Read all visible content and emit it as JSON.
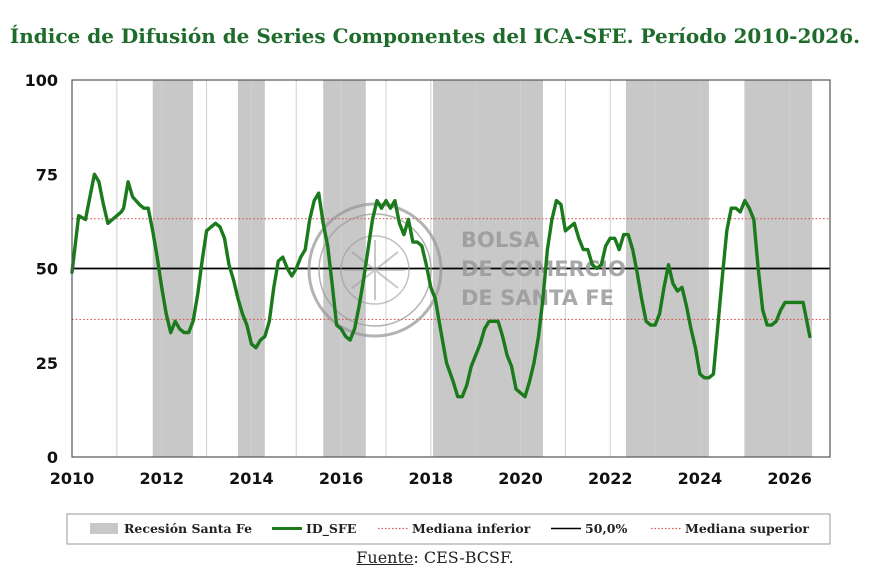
{
  "title": "Índice de Difusión de Series Componentes del ICA-SFE. Período 2010-2026.",
  "source_label": "Fuente",
  "source_text": ": CES-BCSF.",
  "watermark": [
    "BOLSA",
    "DE COMERCIO",
    "DE SANTA FE"
  ],
  "colors": {
    "series": "#1b7a1b",
    "recession": "#c8c8c8",
    "median_lines": "#d9534f",
    "threshold": "#000000"
  },
  "chart_data": {
    "type": "line",
    "title": "Índice de Difusión de Series Componentes del ICA-SFE. Período 2010-2026.",
    "xlim": [
      2010,
      2026.9
    ],
    "ylim": [
      0,
      100
    ],
    "x_ticks": [
      "2010",
      "2012",
      "2014",
      "2016",
      "2018",
      "2020",
      "2022",
      "2024",
      "2026"
    ],
    "y_ticks": [
      "0",
      "25",
      "50",
      "75",
      "100"
    ],
    "grid": "vertical",
    "legend_position": "bottom",
    "recessions": [
      [
        2011.8,
        2012.7
      ],
      [
        2013.7,
        2014.3
      ],
      [
        2015.6,
        2016.55
      ],
      [
        2018.05,
        2020.5
      ],
      [
        2022.35,
        2024.2
      ],
      [
        2025.0,
        2026.5
      ]
    ],
    "reference_lines": [
      {
        "name": "Mediana inferior",
        "value": 36.5,
        "style": "dotted-red"
      },
      {
        "name": "50,0%",
        "value": 50,
        "style": "solid-black"
      },
      {
        "name": "Mediana superior",
        "value": 63.2,
        "style": "dotted-red"
      }
    ],
    "series": [
      {
        "name": "ID_SFE",
        "points": [
          [
            2010.0,
            49
          ],
          [
            2010.15,
            64
          ],
          [
            2010.3,
            63
          ],
          [
            2010.4,
            69
          ],
          [
            2010.5,
            75
          ],
          [
            2010.6,
            73
          ],
          [
            2010.7,
            67
          ],
          [
            2010.8,
            62
          ],
          [
            2010.9,
            63
          ],
          [
            2011.0,
            64
          ],
          [
            2011.1,
            65
          ],
          [
            2011.15,
            66
          ],
          [
            2011.25,
            73
          ],
          [
            2011.35,
            69
          ],
          [
            2011.5,
            67
          ],
          [
            2011.6,
            66
          ],
          [
            2011.7,
            66
          ],
          [
            2011.8,
            60
          ],
          [
            2011.9,
            53
          ],
          [
            2012.0,
            45
          ],
          [
            2012.1,
            38
          ],
          [
            2012.2,
            33
          ],
          [
            2012.3,
            36
          ],
          [
            2012.4,
            34
          ],
          [
            2012.5,
            33
          ],
          [
            2012.6,
            33
          ],
          [
            2012.7,
            36
          ],
          [
            2012.8,
            43
          ],
          [
            2012.9,
            52
          ],
          [
            2013.0,
            60
          ],
          [
            2013.1,
            61
          ],
          [
            2013.2,
            62
          ],
          [
            2013.3,
            61
          ],
          [
            2013.4,
            58
          ],
          [
            2013.5,
            51
          ],
          [
            2013.6,
            47
          ],
          [
            2013.7,
            42
          ],
          [
            2013.8,
            38
          ],
          [
            2013.9,
            35
          ],
          [
            2014.0,
            30
          ],
          [
            2014.1,
            29
          ],
          [
            2014.2,
            31
          ],
          [
            2014.3,
            32
          ],
          [
            2014.4,
            36
          ],
          [
            2014.5,
            45
          ],
          [
            2014.6,
            52
          ],
          [
            2014.7,
            53
          ],
          [
            2014.8,
            50
          ],
          [
            2014.9,
            48
          ],
          [
            2015.0,
            50
          ],
          [
            2015.1,
            53
          ],
          [
            2015.2,
            55
          ],
          [
            2015.3,
            63
          ],
          [
            2015.4,
            68
          ],
          [
            2015.5,
            70
          ],
          [
            2015.6,
            62
          ],
          [
            2015.7,
            56
          ],
          [
            2015.8,
            46
          ],
          [
            2015.9,
            35
          ],
          [
            2016.0,
            34
          ],
          [
            2016.1,
            32
          ],
          [
            2016.2,
            31
          ],
          [
            2016.3,
            34
          ],
          [
            2016.4,
            40
          ],
          [
            2016.5,
            47
          ],
          [
            2016.6,
            55
          ],
          [
            2016.7,
            63
          ],
          [
            2016.8,
            68
          ],
          [
            2016.9,
            66
          ],
          [
            2017.0,
            68
          ],
          [
            2017.1,
            66
          ],
          [
            2017.2,
            68
          ],
          [
            2017.3,
            62
          ],
          [
            2017.4,
            59
          ],
          [
            2017.5,
            63
          ],
          [
            2017.6,
            57
          ],
          [
            2017.7,
            57
          ],
          [
            2017.8,
            56
          ],
          [
            2017.9,
            51
          ],
          [
            2018.0,
            45
          ],
          [
            2018.1,
            42
          ],
          [
            2018.2,
            35
          ],
          [
            2018.35,
            25
          ],
          [
            2018.5,
            20
          ],
          [
            2018.6,
            16
          ],
          [
            2018.7,
            16
          ],
          [
            2018.8,
            19
          ],
          [
            2018.9,
            24
          ],
          [
            2019.0,
            27
          ],
          [
            2019.1,
            30
          ],
          [
            2019.2,
            34
          ],
          [
            2019.3,
            36
          ],
          [
            2019.4,
            36
          ],
          [
            2019.5,
            36
          ],
          [
            2019.6,
            32
          ],
          [
            2019.7,
            27
          ],
          [
            2019.8,
            24
          ],
          [
            2019.9,
            18
          ],
          [
            2020.0,
            17
          ],
          [
            2020.1,
            16
          ],
          [
            2020.2,
            20
          ],
          [
            2020.3,
            25
          ],
          [
            2020.4,
            32
          ],
          [
            2020.5,
            42
          ],
          [
            2020.6,
            55
          ],
          [
            2020.7,
            63
          ],
          [
            2020.8,
            68
          ],
          [
            2020.9,
            67
          ],
          [
            2021.0,
            60
          ],
          [
            2021.1,
            61
          ],
          [
            2021.2,
            62
          ],
          [
            2021.3,
            58
          ],
          [
            2021.4,
            55
          ],
          [
            2021.5,
            55
          ],
          [
            2021.6,
            51
          ],
          [
            2021.7,
            50
          ],
          [
            2021.8,
            51
          ],
          [
            2021.9,
            56
          ],
          [
            2022.0,
            58
          ],
          [
            2022.1,
            58
          ],
          [
            2022.2,
            55
          ],
          [
            2022.3,
            59
          ],
          [
            2022.4,
            59
          ],
          [
            2022.5,
            55
          ],
          [
            2022.6,
            49
          ],
          [
            2022.7,
            42
          ],
          [
            2022.8,
            36
          ],
          [
            2022.9,
            35
          ],
          [
            2023.0,
            35
          ],
          [
            2023.1,
            38
          ],
          [
            2023.2,
            45
          ],
          [
            2023.3,
            51
          ],
          [
            2023.4,
            46
          ],
          [
            2023.5,
            44
          ],
          [
            2023.6,
            45
          ],
          [
            2023.7,
            40
          ],
          [
            2023.8,
            34
          ],
          [
            2023.9,
            29
          ],
          [
            2024.0,
            22
          ],
          [
            2024.1,
            21
          ],
          [
            2024.2,
            21
          ],
          [
            2024.3,
            22
          ],
          [
            2024.4,
            35
          ],
          [
            2024.5,
            48
          ],
          [
            2024.6,
            60
          ],
          [
            2024.7,
            66
          ],
          [
            2024.8,
            66
          ],
          [
            2024.9,
            65
          ],
          [
            2025.0,
            68
          ],
          [
            2025.1,
            66
          ],
          [
            2025.2,
            63
          ],
          [
            2025.3,
            50
          ],
          [
            2025.4,
            39
          ],
          [
            2025.5,
            35
          ],
          [
            2025.6,
            35
          ],
          [
            2025.7,
            36
          ],
          [
            2025.8,
            39
          ],
          [
            2025.9,
            41
          ],
          [
            2026.0,
            41
          ],
          [
            2026.1,
            41
          ],
          [
            2026.2,
            41
          ],
          [
            2026.3,
            41
          ],
          [
            2026.4,
            35
          ],
          [
            2026.45,
            32
          ]
        ]
      }
    ],
    "legend": [
      {
        "label": "Recesión Santa Fe",
        "kind": "box"
      },
      {
        "label": "ID_SFE",
        "kind": "line-green"
      },
      {
        "label": "Mediana inferior",
        "kind": "dotted-red"
      },
      {
        "label": "50,0%",
        "kind": "solid-black"
      },
      {
        "label": "Mediana superior",
        "kind": "dotted-red"
      }
    ]
  }
}
